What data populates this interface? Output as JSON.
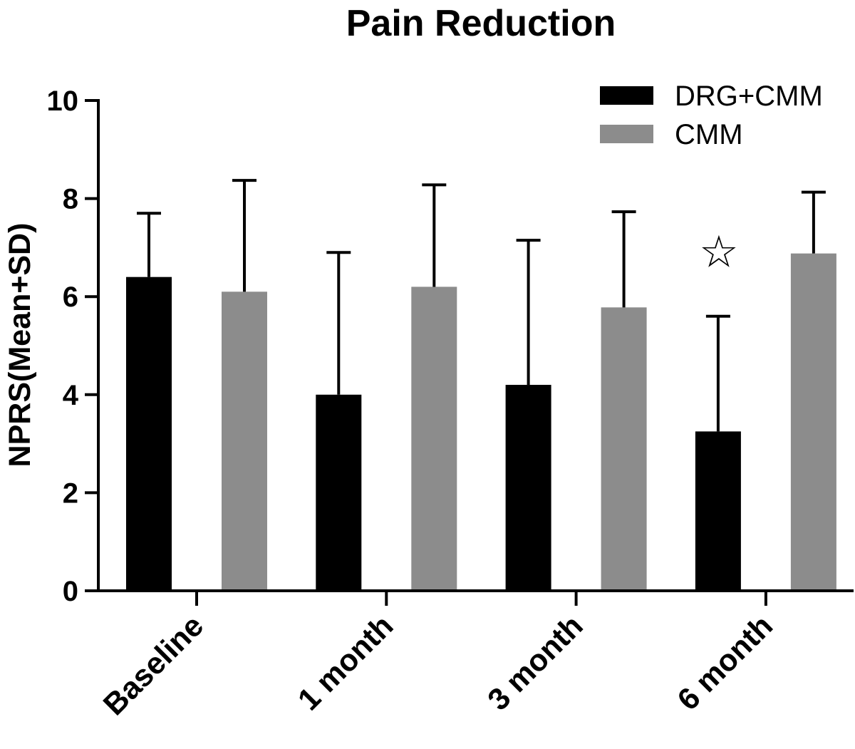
{
  "chart_data": {
    "type": "bar",
    "title": "Pain Reduction",
    "xlabel": "",
    "ylabel": "NPRS(Mean+SD)",
    "ylim": [
      0,
      10
    ],
    "yticks": [
      0,
      2,
      4,
      6,
      8,
      10
    ],
    "grid": false,
    "legend_position": "top-right",
    "categories": [
      "Baseline",
      "1 month",
      "3 month",
      "6 month"
    ],
    "series": [
      {
        "name": "DRG+CMM",
        "color": "#000000",
        "values": [
          6.4,
          4.0,
          4.2,
          3.25
        ],
        "error_plus": [
          1.3,
          2.9,
          2.95,
          2.35
        ]
      },
      {
        "name": "CMM",
        "color": "#8c8c8c",
        "values": [
          6.1,
          6.2,
          5.78,
          6.88
        ],
        "error_plus": [
          2.27,
          2.08,
          1.95,
          1.25
        ]
      }
    ],
    "annotations": [
      {
        "text": "☆",
        "category": "6 month",
        "series": "DRG+CMM",
        "y": 6.9,
        "meaning": "significance-star"
      }
    ]
  }
}
